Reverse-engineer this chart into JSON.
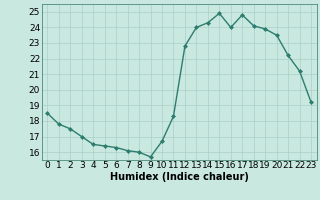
{
  "xlabel": "Humidex (Indice chaleur)",
  "x": [
    0,
    1,
    2,
    3,
    4,
    5,
    6,
    7,
    8,
    9,
    10,
    11,
    12,
    13,
    14,
    15,
    16,
    17,
    18,
    19,
    20,
    21,
    22,
    23
  ],
  "y": [
    18.5,
    17.8,
    17.5,
    17.0,
    16.5,
    16.4,
    16.3,
    16.1,
    16.0,
    15.7,
    16.7,
    18.3,
    22.8,
    24.0,
    24.3,
    24.9,
    24.0,
    24.8,
    24.1,
    23.9,
    23.5,
    22.2,
    21.2,
    19.2
  ],
  "line_color": "#2d7d6e",
  "marker": "D",
  "marker_size": 2.0,
  "line_width": 1.0,
  "bg_color": "#c8e8e0",
  "grid_color": "#aacfc8",
  "ylim": [
    15.5,
    25.5
  ],
  "xlim": [
    -0.5,
    23.5
  ],
  "yticks": [
    16,
    17,
    18,
    19,
    20,
    21,
    22,
    23,
    24,
    25
  ],
  "xticks": [
    0,
    1,
    2,
    3,
    4,
    5,
    6,
    7,
    8,
    9,
    10,
    11,
    12,
    13,
    14,
    15,
    16,
    17,
    18,
    19,
    20,
    21,
    22,
    23
  ],
  "xlabel_fontsize": 7,
  "tick_fontsize": 6.5
}
